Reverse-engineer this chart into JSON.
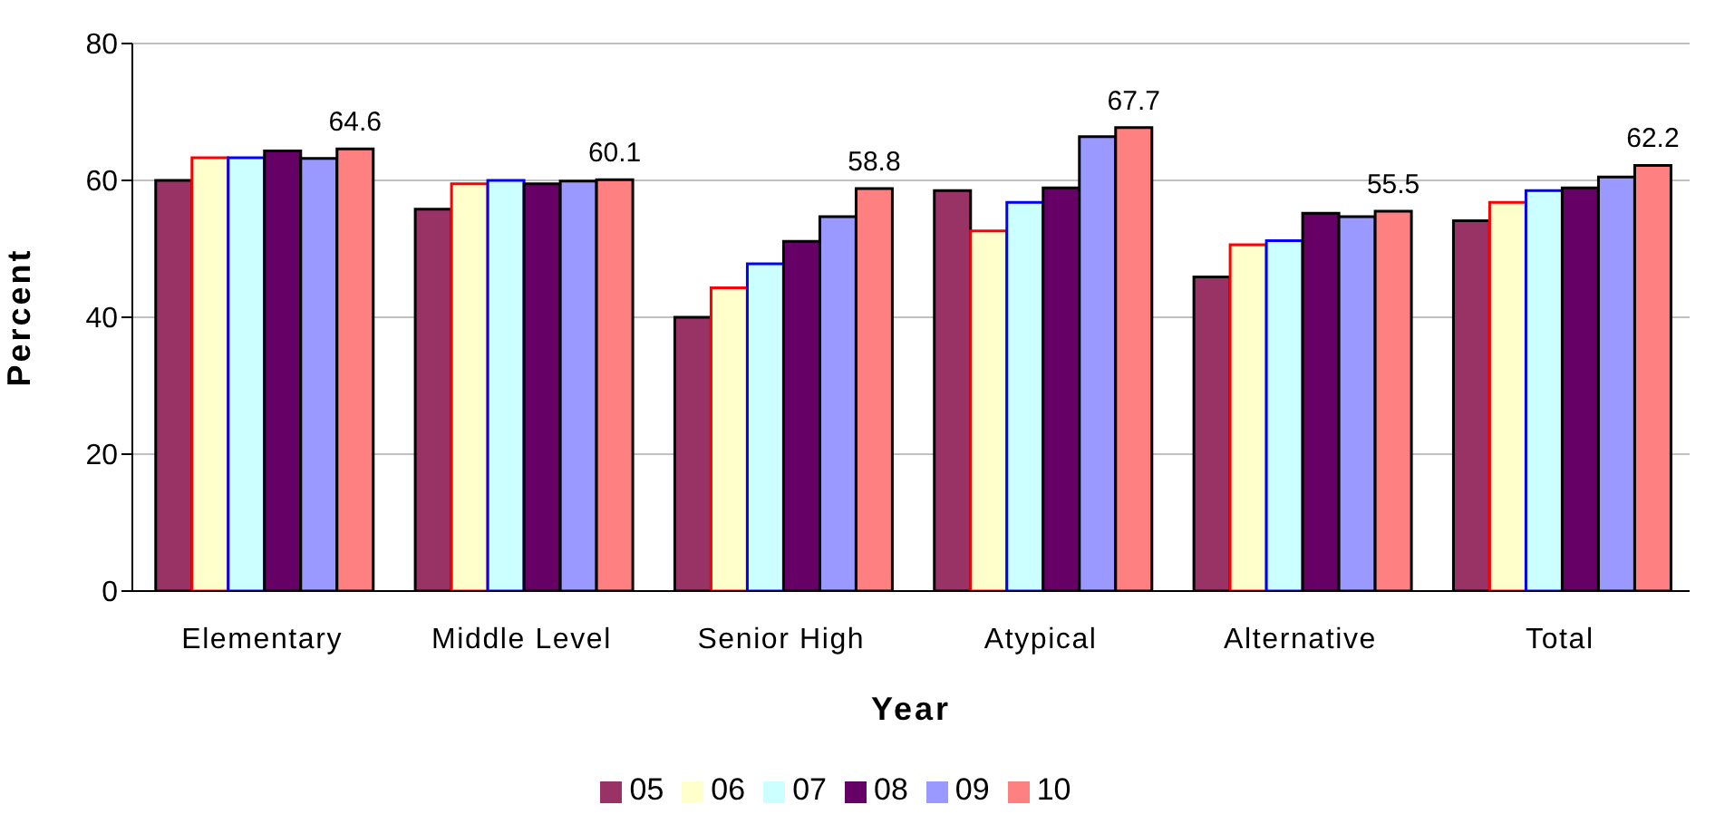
{
  "chart_data": {
    "type": "bar",
    "xlabel": "Year",
    "ylabel": "Percent",
    "categories": [
      "Elementary",
      "Middle Level",
      "Senior High",
      "Atypical",
      "Alternative",
      "Total"
    ],
    "series": [
      {
        "name": "05",
        "color": "#993366",
        "values": [
          60.0,
          55.8,
          40.0,
          58.5,
          45.9,
          54.1
        ]
      },
      {
        "name": "06",
        "color": "#ffffcc",
        "values": [
          63.3,
          59.5,
          44.3,
          52.6,
          50.6,
          56.8
        ]
      },
      {
        "name": "07",
        "color": "#ccffff",
        "values": [
          63.3,
          60.0,
          47.8,
          56.8,
          51.2,
          58.5
        ]
      },
      {
        "name": "08",
        "color": "#660066",
        "values": [
          64.3,
          59.5,
          51.1,
          58.9,
          55.2,
          58.9
        ]
      },
      {
        "name": "09",
        "color": "#9999ff",
        "values": [
          63.2,
          59.9,
          54.7,
          66.4,
          54.7,
          60.5
        ]
      },
      {
        "name": "10",
        "color": "#ff8080",
        "values": [
          64.6,
          60.1,
          58.8,
          67.7,
          55.5,
          62.2
        ],
        "value_labels": [
          "64.6",
          "60.1",
          "58.8",
          "67.7",
          "55.5",
          "62.2"
        ]
      }
    ],
    "ylim": [
      0,
      80
    ],
    "yticks": [
      0,
      20,
      40,
      60,
      80
    ],
    "grid": "y",
    "legend": "bottom"
  }
}
